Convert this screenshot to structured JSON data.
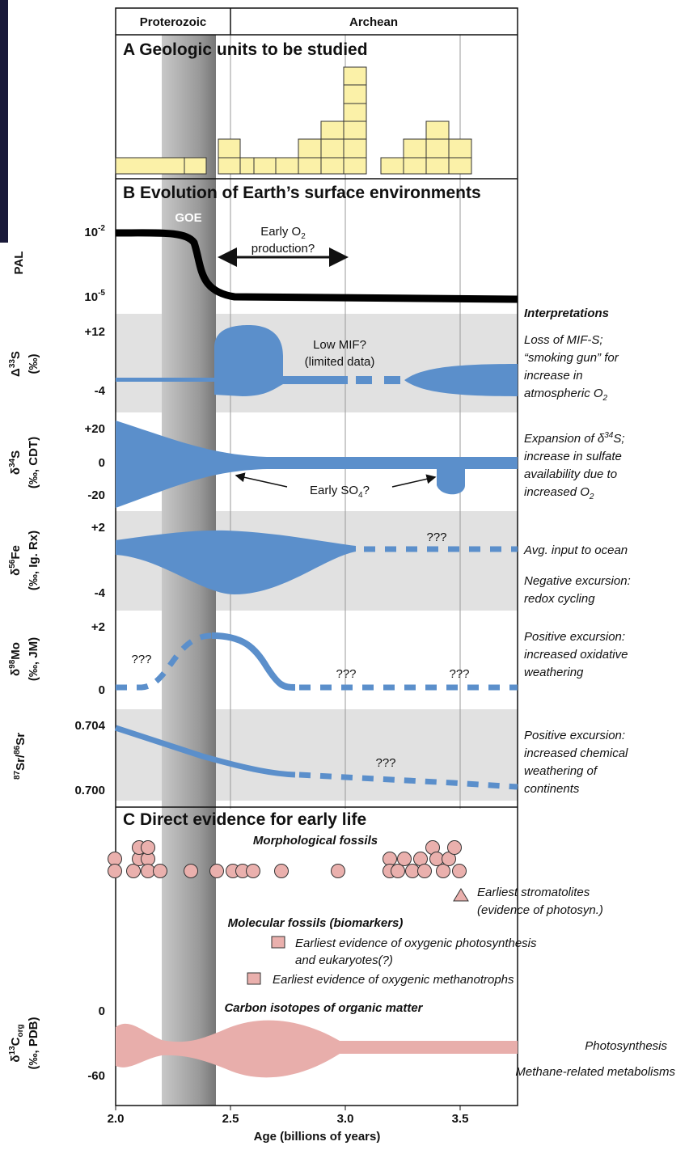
{
  "header": {
    "left": "Proterozoic",
    "right": "Archean"
  },
  "panel_a": {
    "title": "A  Geologic units to be studied"
  },
  "panel_b": {
    "title": "B  Evolution of Earth’s surface environments",
    "goe": "GOE",
    "interpretations_title": "Interpretations",
    "pal": {
      "label": "PAL",
      "ticks": [
        [
          "10",
          "-2"
        ],
        [
          "10",
          "-5"
        ]
      ],
      "note": [
        [
          "Early O",
          "2"
        ],
        [
          "production?"
        ]
      ]
    },
    "d33s": {
      "label": [
        "Δ",
        "33",
        "S"
      ],
      "unit": "(‰)",
      "ticks": [
        "+12",
        "-4"
      ],
      "note": [
        "Low MIF?",
        "(limited data)"
      ],
      "interpretation": [
        [
          "Loss of MIF-S;"
        ],
        [
          "“smoking gun” for"
        ],
        [
          "increase in"
        ],
        [
          "atmospheric O",
          "2"
        ]
      ]
    },
    "d34s": {
      "label": [
        "δ",
        "34",
        "S"
      ],
      "unit": "(‰, CDT)",
      "ticks": [
        "+20",
        "0",
        "-20"
      ],
      "note": [
        "Early SO",
        "4",
        "?"
      ],
      "interpretation": [
        [
          "Expansion of δ",
          "34",
          "S;"
        ],
        [
          "increase in sulfate"
        ],
        [
          "availability due to"
        ],
        [
          "increased O",
          "2"
        ]
      ]
    },
    "d56fe": {
      "label": [
        "δ",
        "56",
        "Fe"
      ],
      "unit": "(‰, Ig. Rx)",
      "ticks": [
        "+2",
        "-4"
      ],
      "note": "???",
      "interpretation": [
        [
          "Avg. input to ocean"
        ],
        [
          "Negative excursion:"
        ],
        [
          "redox cycling"
        ]
      ]
    },
    "d98mo": {
      "label": [
        "δ",
        "98",
        "Mo"
      ],
      "unit": "(‰, JM)",
      "ticks": [
        "+2",
        "0"
      ],
      "notes": [
        "???",
        "???",
        "???"
      ],
      "interpretation": [
        [
          "Positive excursion:"
        ],
        [
          "increased oxidative"
        ],
        [
          "weathering"
        ]
      ]
    },
    "sr": {
      "label": [
        "87",
        "Sr/",
        "86",
        "Sr"
      ],
      "ticks": [
        "0.704",
        "0.700"
      ],
      "note": "???",
      "interpretation": [
        [
          "Positive excursion:"
        ],
        [
          "increased chemical"
        ],
        [
          "weathering of"
        ],
        [
          "continents"
        ]
      ]
    }
  },
  "panel_c": {
    "title": "C  Direct evidence for early life",
    "morph": "Morphological fossils",
    "stromatolites": [
      "Earliest stromatolites",
      "(evidence of photosyn.)"
    ],
    "molecular": "Molecular fossils (biomarkers)",
    "oxygenic": [
      "Earliest evidence of oxygenic photosynthesis",
      "and eukaryotes(?)"
    ],
    "methanotrophs": "Earliest evidence of oxygenic methanotrophs",
    "d13c": {
      "label": [
        "δ",
        "13",
        "C",
        "org"
      ],
      "unit": "(‰, PDB)",
      "ticks": [
        "0",
        "-60"
      ],
      "title": "Carbon isotopes of organic matter",
      "photosynthesis": "Photosynthesis",
      "methane": "Methane-related metabolisms"
    }
  },
  "x_axis": {
    "ticks": [
      "2.0",
      "2.5",
      "3.0",
      "3.5"
    ],
    "label": "Age (billions of years)"
  }
}
